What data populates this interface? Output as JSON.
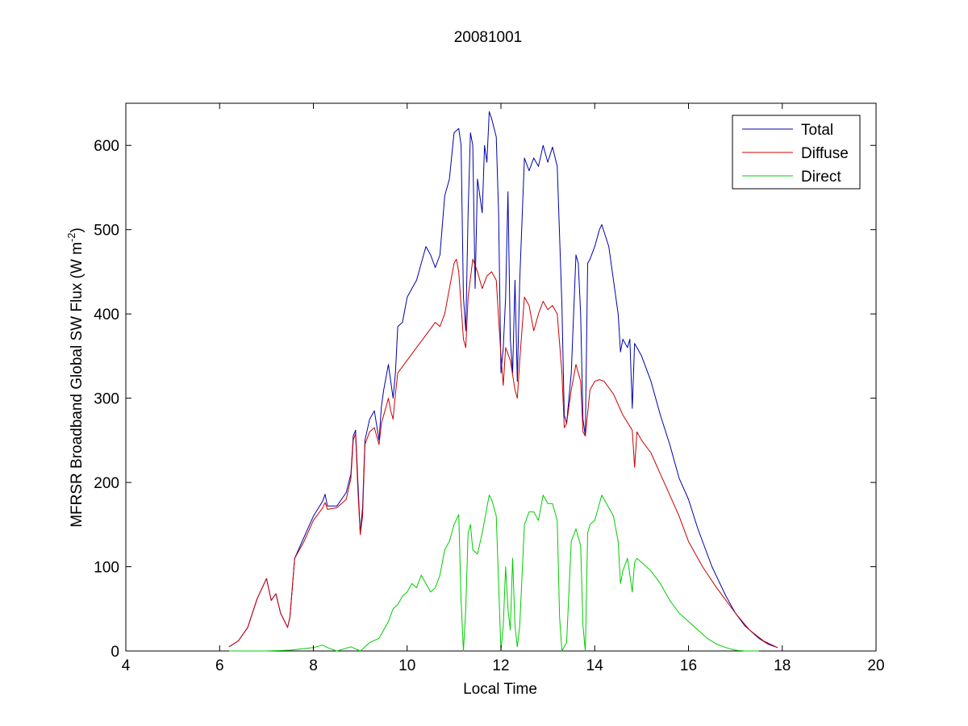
{
  "chart_data": {
    "type": "line",
    "title": "20081001",
    "xlabel": "Local Time",
    "ylabel_main": "MFRSR Broadband Global SW Flux (W m",
    "ylabel_sup": "-2",
    "ylabel_close": ")",
    "xlim": [
      4,
      20
    ],
    "ylim": [
      0,
      650
    ],
    "xticks": [
      4,
      6,
      8,
      10,
      12,
      14,
      16,
      18,
      20
    ],
    "yticks": [
      0,
      100,
      200,
      300,
      400,
      500,
      600
    ],
    "grid": false,
    "legend_position": "top-right",
    "series": [
      {
        "name": "Total",
        "color": "#0000aa",
        "points": [
          [
            6.2,
            5
          ],
          [
            6.4,
            12
          ],
          [
            6.6,
            28
          ],
          [
            6.8,
            62
          ],
          [
            7.0,
            86
          ],
          [
            7.1,
            60
          ],
          [
            7.2,
            68
          ],
          [
            7.3,
            45
          ],
          [
            7.45,
            28
          ],
          [
            7.5,
            40
          ],
          [
            7.6,
            110
          ],
          [
            7.8,
            135
          ],
          [
            8.0,
            160
          ],
          [
            8.2,
            178
          ],
          [
            8.25,
            186
          ],
          [
            8.3,
            172
          ],
          [
            8.5,
            172
          ],
          [
            8.7,
            188
          ],
          [
            8.8,
            210
          ],
          [
            8.85,
            255
          ],
          [
            8.9,
            262
          ],
          [
            8.95,
            200
          ],
          [
            9.0,
            140
          ],
          [
            9.05,
            170
          ],
          [
            9.1,
            250
          ],
          [
            9.2,
            275
          ],
          [
            9.3,
            285
          ],
          [
            9.4,
            250
          ],
          [
            9.45,
            290
          ],
          [
            9.5,
            310
          ],
          [
            9.6,
            340
          ],
          [
            9.65,
            320
          ],
          [
            9.7,
            300
          ],
          [
            9.75,
            330
          ],
          [
            9.8,
            385
          ],
          [
            9.9,
            390
          ],
          [
            10.0,
            420
          ],
          [
            10.1,
            430
          ],
          [
            10.2,
            440
          ],
          [
            10.3,
            460
          ],
          [
            10.4,
            480
          ],
          [
            10.5,
            470
          ],
          [
            10.6,
            455
          ],
          [
            10.7,
            470
          ],
          [
            10.8,
            540
          ],
          [
            10.9,
            560
          ],
          [
            11.0,
            615
          ],
          [
            11.1,
            620
          ],
          [
            11.15,
            600
          ],
          [
            11.2,
            420
          ],
          [
            11.25,
            380
          ],
          [
            11.3,
            520
          ],
          [
            11.35,
            615
          ],
          [
            11.4,
            600
          ],
          [
            11.45,
            430
          ],
          [
            11.5,
            560
          ],
          [
            11.6,
            520
          ],
          [
            11.65,
            600
          ],
          [
            11.7,
            580
          ],
          [
            11.75,
            640
          ],
          [
            11.8,
            632
          ],
          [
            11.9,
            610
          ],
          [
            11.95,
            520
          ],
          [
            12.0,
            330
          ],
          [
            12.05,
            360
          ],
          [
            12.1,
            420
          ],
          [
            12.15,
            545
          ],
          [
            12.2,
            370
          ],
          [
            12.25,
            330
          ],
          [
            12.3,
            440
          ],
          [
            12.35,
            320
          ],
          [
            12.4,
            440
          ],
          [
            12.5,
            585
          ],
          [
            12.6,
            570
          ],
          [
            12.7,
            585
          ],
          [
            12.8,
            575
          ],
          [
            12.9,
            600
          ],
          [
            13.0,
            580
          ],
          [
            13.1,
            598
          ],
          [
            13.2,
            575
          ],
          [
            13.3,
            410
          ],
          [
            13.35,
            280
          ],
          [
            13.4,
            270
          ],
          [
            13.5,
            330
          ],
          [
            13.6,
            470
          ],
          [
            13.65,
            460
          ],
          [
            13.7,
            400
          ],
          [
            13.75,
            275
          ],
          [
            13.8,
            255
          ],
          [
            13.85,
            460
          ],
          [
            13.9,
            465
          ],
          [
            14.0,
            480
          ],
          [
            14.1,
            500
          ],
          [
            14.15,
            506
          ],
          [
            14.3,
            480
          ],
          [
            14.4,
            440
          ],
          [
            14.5,
            400
          ],
          [
            14.55,
            355
          ],
          [
            14.6,
            370
          ],
          [
            14.7,
            360
          ],
          [
            14.75,
            370
          ],
          [
            14.8,
            288
          ],
          [
            14.85,
            365
          ],
          [
            14.9,
            360
          ],
          [
            15.0,
            350
          ],
          [
            15.1,
            335
          ],
          [
            15.2,
            320
          ],
          [
            15.4,
            280
          ],
          [
            15.6,
            245
          ],
          [
            15.8,
            205
          ],
          [
            16.0,
            180
          ],
          [
            16.2,
            145
          ],
          [
            16.5,
            100
          ],
          [
            16.8,
            65
          ],
          [
            17.0,
            45
          ],
          [
            17.2,
            30
          ],
          [
            17.5,
            15
          ],
          [
            17.7,
            8
          ],
          [
            17.9,
            4
          ]
        ]
      },
      {
        "name": "Diffuse",
        "color": "#cc0000",
        "points": [
          [
            6.2,
            5
          ],
          [
            6.4,
            12
          ],
          [
            6.6,
            28
          ],
          [
            6.8,
            62
          ],
          [
            7.0,
            86
          ],
          [
            7.1,
            60
          ],
          [
            7.2,
            68
          ],
          [
            7.3,
            45
          ],
          [
            7.45,
            28
          ],
          [
            7.5,
            40
          ],
          [
            7.6,
            110
          ],
          [
            7.8,
            130
          ],
          [
            8.0,
            155
          ],
          [
            8.2,
            170
          ],
          [
            8.25,
            176
          ],
          [
            8.3,
            168
          ],
          [
            8.5,
            170
          ],
          [
            8.7,
            180
          ],
          [
            8.8,
            205
          ],
          [
            8.85,
            250
          ],
          [
            8.9,
            258
          ],
          [
            8.95,
            190
          ],
          [
            9.0,
            138
          ],
          [
            9.05,
            160
          ],
          [
            9.1,
            245
          ],
          [
            9.2,
            260
          ],
          [
            9.3,
            265
          ],
          [
            9.4,
            245
          ],
          [
            9.45,
            270
          ],
          [
            9.5,
            280
          ],
          [
            9.6,
            300
          ],
          [
            9.65,
            285
          ],
          [
            9.7,
            275
          ],
          [
            9.75,
            305
          ],
          [
            9.8,
            330
          ],
          [
            10.0,
            345
          ],
          [
            10.2,
            360
          ],
          [
            10.4,
            375
          ],
          [
            10.6,
            390
          ],
          [
            10.7,
            385
          ],
          [
            10.8,
            400
          ],
          [
            10.9,
            430
          ],
          [
            11.0,
            460
          ],
          [
            11.05,
            465
          ],
          [
            11.1,
            450
          ],
          [
            11.2,
            370
          ],
          [
            11.25,
            360
          ],
          [
            11.3,
            420
          ],
          [
            11.4,
            465
          ],
          [
            11.5,
            450
          ],
          [
            11.6,
            430
          ],
          [
            11.7,
            445
          ],
          [
            11.8,
            450
          ],
          [
            11.9,
            440
          ],
          [
            12.0,
            350
          ],
          [
            12.05,
            315
          ],
          [
            12.1,
            360
          ],
          [
            12.2,
            345
          ],
          [
            12.3,
            310
          ],
          [
            12.35,
            300
          ],
          [
            12.4,
            345
          ],
          [
            12.5,
            420
          ],
          [
            12.6,
            410
          ],
          [
            12.7,
            380
          ],
          [
            12.8,
            400
          ],
          [
            12.9,
            415
          ],
          [
            13.0,
            405
          ],
          [
            13.1,
            410
          ],
          [
            13.2,
            400
          ],
          [
            13.3,
            330
          ],
          [
            13.35,
            265
          ],
          [
            13.4,
            270
          ],
          [
            13.5,
            310
          ],
          [
            13.6,
            340
          ],
          [
            13.7,
            320
          ],
          [
            13.75,
            260
          ],
          [
            13.8,
            255
          ],
          [
            13.9,
            310
          ],
          [
            14.0,
            320
          ],
          [
            14.1,
            322
          ],
          [
            14.2,
            320
          ],
          [
            14.4,
            305
          ],
          [
            14.6,
            280
          ],
          [
            14.8,
            262
          ],
          [
            14.85,
            218
          ],
          [
            14.9,
            260
          ],
          [
            15.0,
            250
          ],
          [
            15.2,
            235
          ],
          [
            15.4,
            210
          ],
          [
            15.6,
            185
          ],
          [
            15.8,
            160
          ],
          [
            16.0,
            130
          ],
          [
            16.3,
            100
          ],
          [
            16.6,
            75
          ],
          [
            17.0,
            45
          ],
          [
            17.3,
            25
          ],
          [
            17.6,
            12
          ],
          [
            17.9,
            4
          ]
        ]
      },
      {
        "name": "Direct",
        "color": "#00cc00",
        "points": [
          [
            6.2,
            0
          ],
          [
            7.0,
            0
          ],
          [
            7.5,
            1
          ],
          [
            8.0,
            4
          ],
          [
            8.2,
            7
          ],
          [
            8.3,
            4
          ],
          [
            8.5,
            0
          ],
          [
            8.8,
            5
          ],
          [
            9.0,
            0
          ],
          [
            9.2,
            10
          ],
          [
            9.4,
            15
          ],
          [
            9.5,
            25
          ],
          [
            9.6,
            35
          ],
          [
            9.7,
            50
          ],
          [
            9.8,
            55
          ],
          [
            9.9,
            65
          ],
          [
            10.0,
            70
          ],
          [
            10.1,
            80
          ],
          [
            10.2,
            75
          ],
          [
            10.3,
            90
          ],
          [
            10.4,
            80
          ],
          [
            10.5,
            70
          ],
          [
            10.6,
            75
          ],
          [
            10.7,
            90
          ],
          [
            10.8,
            120
          ],
          [
            10.9,
            130
          ],
          [
            11.0,
            150
          ],
          [
            11.1,
            162
          ],
          [
            11.15,
            60
          ],
          [
            11.2,
            0
          ],
          [
            11.25,
            50
          ],
          [
            11.3,
            140
          ],
          [
            11.35,
            150
          ],
          [
            11.4,
            120
          ],
          [
            11.5,
            115
          ],
          [
            11.6,
            140
          ],
          [
            11.7,
            170
          ],
          [
            11.75,
            185
          ],
          [
            11.8,
            180
          ],
          [
            11.9,
            160
          ],
          [
            11.95,
            80
          ],
          [
            12.0,
            0
          ],
          [
            12.05,
            30
          ],
          [
            12.1,
            100
          ],
          [
            12.15,
            50
          ],
          [
            12.2,
            25
          ],
          [
            12.25,
            110
          ],
          [
            12.3,
            30
          ],
          [
            12.35,
            5
          ],
          [
            12.4,
            30
          ],
          [
            12.5,
            150
          ],
          [
            12.6,
            165
          ],
          [
            12.7,
            165
          ],
          [
            12.8,
            155
          ],
          [
            12.9,
            185
          ],
          [
            13.0,
            175
          ],
          [
            13.1,
            175
          ],
          [
            13.2,
            155
          ],
          [
            13.25,
            40
          ],
          [
            13.3,
            0
          ],
          [
            13.4,
            10
          ],
          [
            13.5,
            130
          ],
          [
            13.6,
            145
          ],
          [
            13.7,
            125
          ],
          [
            13.75,
            30
          ],
          [
            13.8,
            0
          ],
          [
            13.85,
            140
          ],
          [
            13.9,
            150
          ],
          [
            14.0,
            155
          ],
          [
            14.1,
            175
          ],
          [
            14.15,
            185
          ],
          [
            14.3,
            170
          ],
          [
            14.4,
            160
          ],
          [
            14.5,
            130
          ],
          [
            14.55,
            80
          ],
          [
            14.6,
            95
          ],
          [
            14.7,
            110
          ],
          [
            14.8,
            70
          ],
          [
            14.85,
            105
          ],
          [
            14.9,
            110
          ],
          [
            15.0,
            105
          ],
          [
            15.2,
            95
          ],
          [
            15.4,
            80
          ],
          [
            15.6,
            60
          ],
          [
            15.8,
            45
          ],
          [
            16.0,
            35
          ],
          [
            16.2,
            25
          ],
          [
            16.4,
            15
          ],
          [
            16.6,
            8
          ],
          [
            16.8,
            4
          ],
          [
            17.0,
            1
          ],
          [
            17.2,
            0
          ],
          [
            17.5,
            0
          ]
        ]
      }
    ]
  }
}
